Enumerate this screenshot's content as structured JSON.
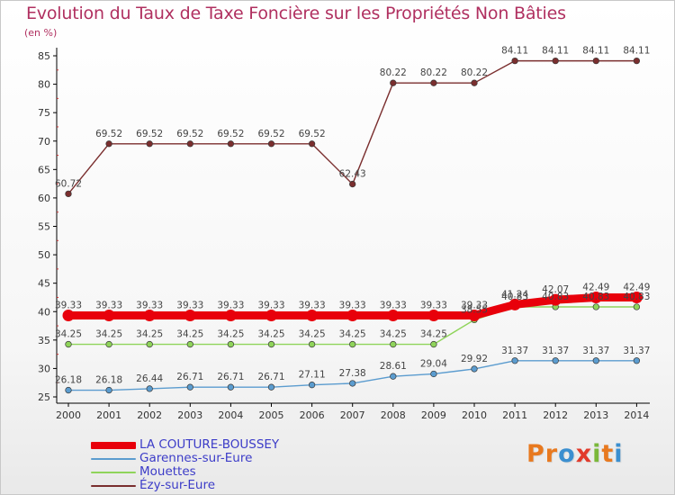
{
  "title": "Evolution du Taux de Taxe Foncière sur les Propriétés Non Bâties",
  "unit": "(en %)",
  "brand": {
    "text": "Proxiti",
    "letter_colors": [
      "#e8791f",
      "#e8791f",
      "#3b8fd0",
      "#e23a2b",
      "#7ab83a",
      "#e8791f",
      "#3b8fd0"
    ]
  },
  "chart_data": {
    "type": "line",
    "title": "Evolution du Taux de Taxe Foncière sur les Propriétés Non Bâties",
    "ylabel": "(en %)",
    "xlabel": "",
    "ylim": [
      25,
      85
    ],
    "yticks": [
      25,
      30,
      35,
      40,
      45,
      50,
      55,
      60,
      65,
      70,
      75,
      80,
      85
    ],
    "grid": false,
    "legend_position": "bottom-left",
    "categories": [
      "2000",
      "2001",
      "2002",
      "2003",
      "2004",
      "2005",
      "2006",
      "2007",
      "2008",
      "2009",
      "2010",
      "2011",
      "2012",
      "2013",
      "2014"
    ],
    "series": [
      {
        "name": "Ézy-sur-Eure",
        "color": "#7a2e2e",
        "values": [
          60.72,
          69.52,
          69.52,
          69.52,
          69.52,
          69.52,
          69.52,
          62.43,
          80.22,
          80.22,
          80.22,
          84.11,
          84.11,
          84.11,
          84.11
        ],
        "labels": [
          "60.72",
          "69.52",
          "69.52",
          "69.52",
          "69.52",
          "69.52",
          "69.52",
          "62.43",
          "80.22",
          "80.22",
          "80.22",
          "84.11",
          "84.11",
          "84.11",
          "84.11"
        ]
      },
      {
        "name": "Mouettes",
        "color": "#8fd45a",
        "values": [
          34.25,
          34.25,
          34.25,
          34.25,
          34.25,
          34.25,
          34.25,
          34.25,
          34.25,
          34.25,
          38.55,
          40.83,
          40.83,
          40.83,
          40.83
        ],
        "labels": [
          "34.25",
          "34.25",
          "34.25",
          "34.25",
          "34.25",
          "34.25",
          "34.25",
          "34.25",
          "34.25",
          "34.25",
          "38.55",
          "40.83",
          "40.83",
          "40.83",
          "40.83"
        ]
      },
      {
        "name": "Garennes-sur-Eure",
        "color": "#5b9ccf",
        "values": [
          26.18,
          26.18,
          26.44,
          26.71,
          26.71,
          26.71,
          27.11,
          27.38,
          28.61,
          29.04,
          29.92,
          31.37,
          31.37,
          31.37,
          31.37
        ],
        "labels": [
          "26.18",
          "26.18",
          "26.44",
          "26.71",
          "26.71",
          "26.71",
          "27.11",
          "27.38",
          "28.61",
          "29.04",
          "29.92",
          "31.37",
          "31.37",
          "31.37",
          "31.37"
        ]
      },
      {
        "name": "LA COUTURE-BOUSSEY",
        "color": "#e8000b",
        "values": [
          39.33,
          39.33,
          39.33,
          39.33,
          39.33,
          39.33,
          39.33,
          39.33,
          39.33,
          39.33,
          39.33,
          41.24,
          42.07,
          42.49,
          42.49
        ],
        "labels": [
          "39.33",
          "39.33",
          "39.33",
          "39.33",
          "39.33",
          "39.33",
          "39.33",
          "39.33",
          "39.33",
          "39.33",
          "39.33",
          "41.24",
          "42.07",
          "42.49",
          "42.49"
        ]
      }
    ],
    "legend": [
      "LA COUTURE-BOUSSEY",
      "Garennes-sur-Eure",
      "Mouettes",
      "Ézy-sur-Eure"
    ]
  }
}
